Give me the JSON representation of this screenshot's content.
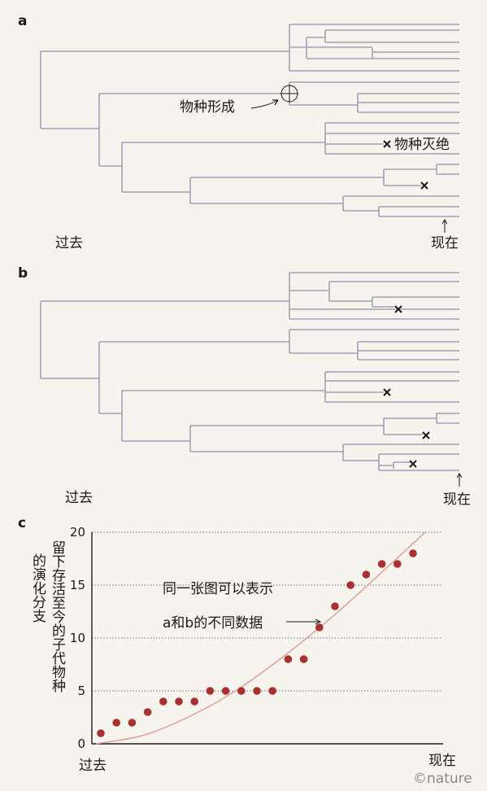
{
  "panel_a": {
    "label": "a",
    "speciation_label": "物种形成",
    "extinction_label": "物种灭绝",
    "past_label": "过去",
    "present_label": "现在"
  },
  "panel_b": {
    "label": "b",
    "past_label": "过去",
    "present_label": "现在"
  },
  "panel_c": {
    "label": "c",
    "ylabel_lines": [
      "留下存活至今的子代物种",
      "的演化分支"
    ],
    "annotation_lines": [
      "同一张图可以表示",
      "a和b的不同数据"
    ],
    "x_start_label": "过去",
    "x_end_label": "现在"
  },
  "watermark": "©nature",
  "colors": {
    "background": "#f6f4ec",
    "tree_line": "#9ea2b5",
    "dot": "#a83232",
    "curve": "#e0a09c",
    "text": "#1a1a1a"
  },
  "chart_data": {
    "type": "scatter",
    "title": "",
    "xlabel": "",
    "ylabel": "留下存活至今的子代物种的演化分支",
    "ylim": [
      0,
      20
    ],
    "yticks": [
      0,
      5,
      10,
      15,
      20
    ],
    "grid": "dotted horizontal",
    "x_axis_ends": [
      "过去",
      "现在"
    ],
    "series": [
      {
        "kind": "points",
        "values": [
          1,
          2,
          2,
          3,
          4,
          4,
          4,
          5,
          5,
          5,
          5,
          5,
          8,
          8,
          11,
          13,
          15,
          16,
          17,
          17,
          18
        ]
      },
      {
        "kind": "trend-curve",
        "values": [
          0,
          0.8,
          2.6,
          5.1,
          8.3,
          11.9,
          15.9,
          20
        ]
      }
    ]
  }
}
